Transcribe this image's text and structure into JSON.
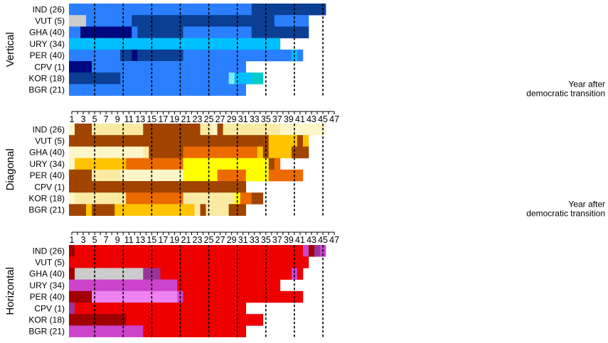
{
  "chart_data": {
    "type": "heatmap",
    "x_axis": {
      "range": [
        1,
        47
      ],
      "ticks": [
        "1",
        "3",
        "5",
        "7",
        "9",
        "11",
        "13",
        "15",
        "17",
        "19",
        "21",
        "23",
        "25",
        "27",
        "29",
        "31",
        "33",
        "35",
        "37",
        "39",
        "41",
        "43",
        "45",
        "47"
      ],
      "annotation_line1": "Year after",
      "annotation_line2": "democratic transition",
      "reference_lines": [
        5,
        10,
        15,
        20,
        25,
        30,
        35,
        40,
        45
      ]
    },
    "countries": [
      "IND (26)",
      "VUT (5)",
      "GHA (40)",
      "URY (34)",
      "PER (40)",
      "CPV (1)",
      "KOR (18)",
      "BGR (21)"
    ],
    "panels": [
      {
        "title": "Vertical",
        "show_annotation": true,
        "rows": [
          [
            [
              "#2a7fff",
              1,
              32
            ],
            [
              "#0b3f94",
              33,
              45
            ]
          ],
          [
            [
              "#cccccc",
              1,
              3
            ],
            [
              "#2a7fff",
              4,
              11
            ],
            [
              "#0b3f94",
              12,
              36
            ],
            [
              "#2a7fff",
              37,
              42
            ]
          ],
          [
            [
              "#2a7fff",
              1,
              2
            ],
            [
              "#00087f",
              3,
              11
            ],
            [
              "#2a7fff",
              12,
              12
            ],
            [
              "#0b3f94",
              13,
              20
            ],
            [
              "#2a7fff",
              21,
              32
            ],
            [
              "#0b3f94",
              33,
              42
            ]
          ],
          [
            [
              "#00bfff",
              1,
              37
            ]
          ],
          [
            [
              "#2a7fff",
              1,
              9
            ],
            [
              "#0b3f94",
              10,
              11
            ],
            [
              "#00087f",
              12,
              12
            ],
            [
              "#0b3f94",
              13,
              20
            ],
            [
              "#2a7fff",
              21,
              39
            ],
            [
              "#00bfff",
              40,
              40
            ],
            [
              "#2a7fff",
              41,
              41
            ]
          ],
          [
            [
              "#00087f",
              1,
              4
            ],
            [
              "#2a7fff",
              5,
              31
            ]
          ],
          [
            [
              "#0b3f94",
              1,
              9
            ],
            [
              "#2a7fff",
              10,
              28
            ],
            [
              "#7fe9ff",
              29,
              29
            ],
            [
              "#00bfff",
              30,
              32
            ],
            [
              "#00cccc",
              33,
              34
            ]
          ],
          [
            [
              "#2a7fff",
              1,
              31
            ]
          ]
        ]
      },
      {
        "title": "Diagonal",
        "show_annotation": true,
        "rows": [
          [
            [
              "#fdf6c9",
              1,
              1
            ],
            [
              "#a04400",
              2,
              4
            ],
            [
              "#faeaa3",
              5,
              13
            ],
            [
              "#a04400",
              14,
              23
            ],
            [
              "#faeaa3",
              24,
              25
            ],
            [
              "#fdf6c9",
              26,
              26
            ],
            [
              "#a04400",
              27,
              27
            ],
            [
              "#faeaa3",
              28,
              37
            ],
            [
              "#fdf6c9",
              38,
              45
            ]
          ],
          [
            [
              "#a04400",
              1,
              35
            ],
            [
              "#ffc300",
              36,
              40
            ],
            [
              "#a04400",
              41,
              41
            ],
            [
              "#ffc300",
              42,
              42
            ]
          ],
          [
            [
              "#fdf6c9",
              1,
              13
            ],
            [
              "#faeaa3",
              14,
              14
            ],
            [
              "#a04400",
              15,
              20
            ],
            [
              "#ec6a00",
              21,
              33
            ],
            [
              "#ffc300",
              34,
              34
            ],
            [
              "#a04400",
              35,
              35
            ],
            [
              "#ffc300",
              36,
              39
            ],
            [
              "#a04400",
              40,
              42
            ]
          ],
          [
            [
              "#fdf6c9",
              1,
              1
            ],
            [
              "#ffc300",
              2,
              10
            ],
            [
              "#ec6a00",
              11,
              20
            ],
            [
              "#ffff00",
              21,
              35
            ],
            [
              "#a04400",
              36,
              36
            ],
            [
              "#ec6a00",
              37,
              37
            ]
          ],
          [
            [
              "#a04400",
              1,
              4
            ],
            [
              "#faeaa3",
              5,
              9
            ],
            [
              "#fdf6c9",
              10,
              20
            ],
            [
              "#ffff00",
              21,
              26
            ],
            [
              "#ec6a00",
              27,
              31
            ],
            [
              "#ffff00",
              32,
              35
            ],
            [
              "#ec6a00",
              36,
              41
            ]
          ],
          [
            [
              "#a04400",
              1,
              31
            ]
          ],
          [
            [
              "#fdf6c9",
              1,
              1
            ],
            [
              "#faeaa3",
              2,
              10
            ],
            [
              "#ec6a00",
              11,
              20
            ],
            [
              "#faeaa3",
              21,
              29
            ],
            [
              "#ffff00",
              30,
              30
            ],
            [
              "#ec6a00",
              31,
              32
            ],
            [
              "#a04400",
              33,
              34
            ]
          ],
          [
            [
              "#a04400",
              1,
              3
            ],
            [
              "#ffc300",
              4,
              4
            ],
            [
              "#a04400",
              5,
              8
            ],
            [
              "#ffc300",
              9,
              22
            ],
            [
              "#faeaa3",
              23,
              23
            ],
            [
              "#a04400",
              24,
              24
            ],
            [
              "#faeaa3",
              25,
              28
            ],
            [
              "#a04400",
              29,
              31
            ]
          ]
        ]
      },
      {
        "title": "Horizontal",
        "show_annotation": false,
        "rows": [
          [
            [
              "#a00000",
              1,
              1
            ],
            [
              "#ee0000",
              2,
              41
            ],
            [
              "#cc44cc",
              42,
              42
            ],
            [
              "#a00000",
              43,
              43
            ],
            [
              "#993399",
              44,
              44
            ],
            [
              "#cc44cc",
              45,
              45
            ]
          ],
          [
            [
              "#ee0000",
              1,
              42
            ]
          ],
          [
            [
              "#a00000",
              1,
              1
            ],
            [
              "#cccccc",
              2,
              13
            ],
            [
              "#993399",
              14,
              16
            ],
            [
              "#ee0000",
              17,
              39
            ],
            [
              "#cc44cc",
              40,
              40
            ],
            [
              "#ee0000",
              41,
              41
            ]
          ],
          [
            [
              "#cc44cc",
              1,
              19
            ],
            [
              "#ee0000",
              20,
              37
            ]
          ],
          [
            [
              "#a00000",
              1,
              4
            ],
            [
              "#ee82ee",
              5,
              19
            ],
            [
              "#cc44cc",
              20,
              20
            ],
            [
              "#ee0000",
              21,
              41
            ]
          ],
          [
            [
              "#993399",
              1,
              1
            ],
            [
              "#ee0000",
              2,
              31
            ]
          ],
          [
            [
              "#a00000",
              1,
              10
            ],
            [
              "#ee0000",
              11,
              34
            ]
          ],
          [
            [
              "#cc44cc",
              1,
              13
            ],
            [
              "#ee0000",
              14,
              31
            ]
          ]
        ]
      }
    ]
  }
}
